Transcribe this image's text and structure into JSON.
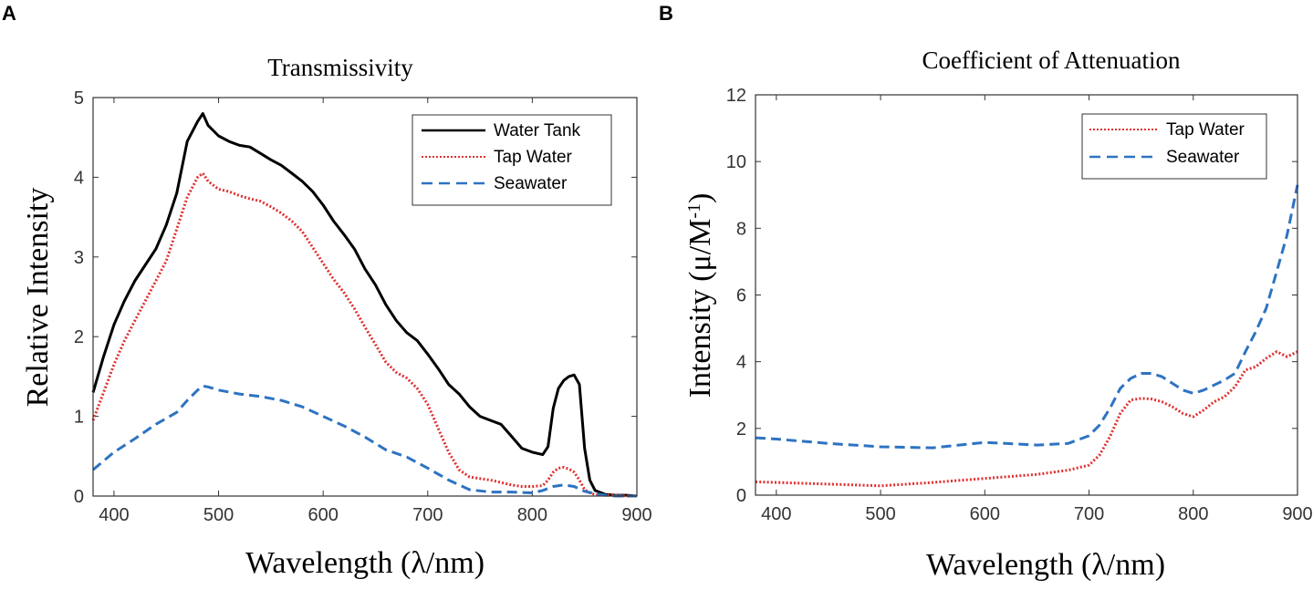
{
  "chart_data": [
    {
      "panel": "A",
      "type": "line",
      "title": "Transmissivity",
      "xlabel": "Wavelength  (λ/nm)",
      "ylabel": "Relative Intensity",
      "xlim": [
        380,
        900
      ],
      "ylim": [
        0,
        5
      ],
      "xticks": [
        400,
        500,
        600,
        700,
        800,
        900
      ],
      "yticks": [
        0,
        1,
        2,
        3,
        4,
        5
      ],
      "legend_position": "top-right",
      "series": [
        {
          "name": "Water Tank",
          "color": "#000000",
          "style": "solid",
          "x": [
            380,
            390,
            400,
            410,
            420,
            430,
            440,
            450,
            460,
            470,
            480,
            485,
            490,
            500,
            510,
            520,
            530,
            540,
            550,
            560,
            570,
            580,
            590,
            600,
            610,
            620,
            630,
            640,
            650,
            660,
            670,
            680,
            690,
            700,
            710,
            720,
            730,
            740,
            750,
            760,
            770,
            780,
            790,
            800,
            810,
            815,
            820,
            825,
            830,
            835,
            840,
            845,
            850,
            855,
            860,
            870,
            880,
            890,
            900
          ],
          "y": [
            1.3,
            1.75,
            2.15,
            2.45,
            2.7,
            2.9,
            3.1,
            3.4,
            3.8,
            4.45,
            4.7,
            4.8,
            4.65,
            4.52,
            4.45,
            4.4,
            4.38,
            4.3,
            4.22,
            4.15,
            4.05,
            3.95,
            3.82,
            3.65,
            3.45,
            3.28,
            3.1,
            2.85,
            2.65,
            2.4,
            2.2,
            2.05,
            1.95,
            1.78,
            1.6,
            1.4,
            1.28,
            1.12,
            1.0,
            0.95,
            0.9,
            0.75,
            0.6,
            0.55,
            0.52,
            0.62,
            1.1,
            1.35,
            1.45,
            1.5,
            1.52,
            1.4,
            0.6,
            0.2,
            0.07,
            0.02,
            0.01,
            0.01,
            0.0
          ]
        },
        {
          "name": "Tap Water",
          "color": "#e03030",
          "style": "dotted",
          "x": [
            380,
            390,
            400,
            410,
            420,
            430,
            440,
            450,
            460,
            470,
            480,
            485,
            490,
            500,
            510,
            520,
            530,
            540,
            550,
            560,
            570,
            580,
            590,
            600,
            610,
            620,
            630,
            640,
            650,
            660,
            670,
            680,
            690,
            700,
            710,
            720,
            730,
            740,
            750,
            760,
            770,
            780,
            790,
            800,
            810,
            815,
            820,
            825,
            830,
            835,
            840,
            845,
            850,
            855,
            860,
            870,
            880,
            890,
            900
          ],
          "y": [
            0.95,
            1.3,
            1.65,
            1.95,
            2.2,
            2.45,
            2.7,
            2.95,
            3.35,
            3.75,
            4.0,
            4.05,
            3.95,
            3.85,
            3.82,
            3.77,
            3.73,
            3.7,
            3.63,
            3.55,
            3.45,
            3.32,
            3.12,
            2.92,
            2.72,
            2.55,
            2.35,
            2.12,
            1.9,
            1.68,
            1.55,
            1.48,
            1.35,
            1.15,
            0.85,
            0.55,
            0.33,
            0.24,
            0.22,
            0.2,
            0.17,
            0.14,
            0.12,
            0.12,
            0.13,
            0.2,
            0.3,
            0.35,
            0.36,
            0.34,
            0.3,
            0.2,
            0.08,
            0.04,
            0.02,
            0.01,
            0.01,
            0.0,
            0.0
          ]
        },
        {
          "name": "Seawater",
          "color": "#2d73c2",
          "style": "dashed",
          "x": [
            380,
            400,
            420,
            440,
            460,
            470,
            480,
            485,
            490,
            500,
            520,
            540,
            560,
            580,
            600,
            620,
            640,
            660,
            680,
            700,
            720,
            740,
            760,
            780,
            800,
            810,
            820,
            830,
            840,
            850,
            860,
            870,
            880,
            900
          ],
          "y": [
            0.33,
            0.55,
            0.72,
            0.9,
            1.05,
            1.2,
            1.33,
            1.38,
            1.37,
            1.33,
            1.28,
            1.25,
            1.2,
            1.12,
            1.0,
            0.88,
            0.74,
            0.58,
            0.49,
            0.35,
            0.2,
            0.08,
            0.05,
            0.05,
            0.04,
            0.07,
            0.12,
            0.14,
            0.12,
            0.06,
            0.03,
            0.01,
            0.0,
            0.0
          ]
        }
      ]
    },
    {
      "panel": "B",
      "type": "line",
      "title": "Coefficient of Attenuation",
      "xlabel": "Wavelength  (λ/nm)",
      "ylabel": "Intensity  (μ/M",
      "ylabel_superscript": "-1",
      "ylabel_close": ")",
      "xlim": [
        380,
        900
      ],
      "ylim": [
        0,
        12
      ],
      "xticks": [
        400,
        500,
        600,
        700,
        800,
        900
      ],
      "yticks": [
        0,
        2,
        4,
        6,
        8,
        10,
        12
      ],
      "legend_position": "top-right",
      "series": [
        {
          "name": "Tap Water",
          "color": "#e03030",
          "style": "dotted",
          "x": [
            380,
            400,
            450,
            500,
            550,
            600,
            650,
            680,
            700,
            710,
            720,
            730,
            740,
            750,
            760,
            770,
            780,
            790,
            800,
            810,
            820,
            830,
            840,
            850,
            860,
            870,
            880,
            890,
            900
          ],
          "y": [
            0.4,
            0.38,
            0.33,
            0.28,
            0.38,
            0.5,
            0.62,
            0.75,
            0.9,
            1.2,
            1.75,
            2.45,
            2.85,
            2.9,
            2.88,
            2.8,
            2.65,
            2.45,
            2.35,
            2.55,
            2.8,
            2.95,
            3.25,
            3.75,
            3.85,
            4.1,
            4.3,
            4.15,
            4.3
          ]
        },
        {
          "name": "Seawater",
          "color": "#2d73c2",
          "style": "dashed",
          "x": [
            380,
            400,
            450,
            500,
            550,
            600,
            620,
            650,
            680,
            700,
            710,
            720,
            730,
            740,
            750,
            760,
            770,
            780,
            790,
            800,
            810,
            820,
            830,
            840,
            850,
            860,
            870,
            880,
            890,
            900
          ],
          "y": [
            1.72,
            1.68,
            1.55,
            1.45,
            1.42,
            1.58,
            1.55,
            1.5,
            1.55,
            1.78,
            2.1,
            2.6,
            3.2,
            3.5,
            3.65,
            3.65,
            3.55,
            3.35,
            3.15,
            3.05,
            3.15,
            3.3,
            3.45,
            3.65,
            4.3,
            4.9,
            5.6,
            6.7,
            7.8,
            9.3
          ]
        }
      ]
    }
  ]
}
